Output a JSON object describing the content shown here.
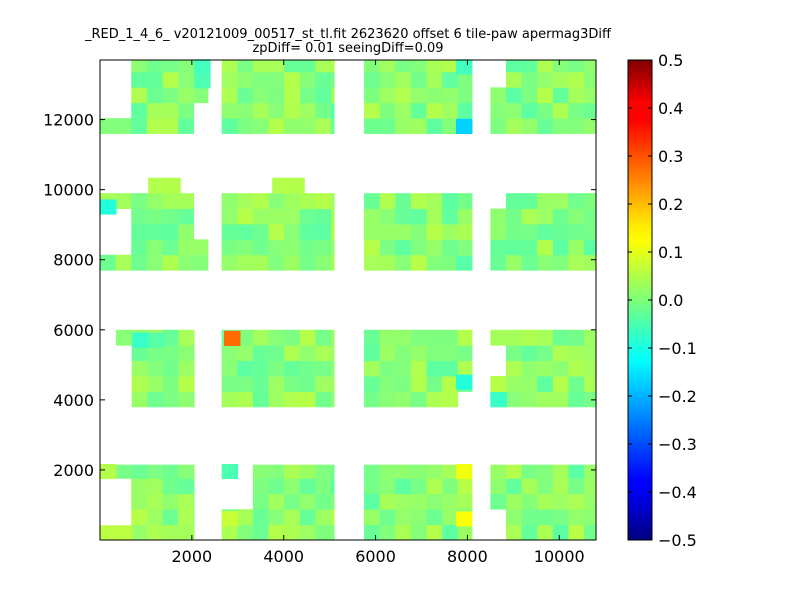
{
  "chart_data": {
    "type": "heatmap",
    "title_line1": "_RED_1_4_6_ v20121009_00517_st_tl.fit 2623620 offset 6 tile-paw apermag3Diff",
    "title_line2": "zpDiff= 0.01 seeingDiff=0.09",
    "xlabel": "",
    "ylabel": "",
    "xlim": [
      0,
      10800
    ],
    "ylim": [
      0,
      13700
    ],
    "xticks": [
      2000,
      4000,
      6000,
      8000,
      10000
    ],
    "xtick_labels": [
      "2000",
      "4000",
      "6000",
      "8000",
      "10000"
    ],
    "yticks": [
      2000,
      4000,
      6000,
      8000,
      10000,
      12000
    ],
    "ytick_labels": [
      "2000",
      "4000",
      "6000",
      "8000",
      "10000",
      "12000"
    ],
    "colorbar": {
      "colormap": "jet",
      "vmin": -0.5,
      "vmax": 0.5,
      "ticks": [
        0.5,
        0.4,
        0.3,
        0.2,
        0.1,
        0.0,
        -0.1,
        -0.2,
        -0.3,
        -0.4,
        -0.5
      ],
      "tick_labels": [
        "0.5",
        "0.4",
        "0.3",
        "0.2",
        "0.1",
        "0.0",
        "−0.1",
        "−0.2",
        "−0.3",
        "−0.4",
        "−0.5"
      ]
    },
    "cell_size": [
      340,
      440
    ],
    "base_value": 0.01,
    "chips": [
      {
        "x0": 0,
        "x1": 2050,
        "y0": 0,
        "y1": 2150,
        "missing": [
          [
            0,
            0,
            700,
            1750
          ],
          [
            2050,
            0,
            2050,
            0
          ]
        ]
      },
      {
        "x0": 2650,
        "x1": 5100,
        "y0": 0,
        "y1": 2150,
        "missing": [
          [
            2650,
            1050,
            3400,
            2150
          ]
        ]
      },
      {
        "x0": 5750,
        "x1": 8100,
        "y0": 0,
        "y1": 2150,
        "missing": []
      },
      {
        "x0": 8500,
        "x1": 10800,
        "y0": 0,
        "y1": 2150,
        "missing": [
          [
            8500,
            0,
            8850,
            1050
          ]
        ]
      },
      {
        "x0": 350,
        "x1": 2050,
        "y0": 3800,
        "y1": 6000,
        "missing": [
          [
            350,
            4000,
            700,
            5500
          ]
        ]
      },
      {
        "x0": 2650,
        "x1": 5100,
        "y0": 3800,
        "y1": 6000,
        "missing": []
      },
      {
        "x0": 5750,
        "x1": 8100,
        "y0": 3800,
        "y1": 6000,
        "missing": [
          [
            7700,
            3800,
            8100,
            4300
          ]
        ]
      },
      {
        "x0": 8500,
        "x1": 10800,
        "y0": 3800,
        "y1": 6000,
        "missing": [
          [
            8500,
            4800,
            8850,
            5700
          ]
        ]
      },
      {
        "x0": 0,
        "x1": 2350,
        "y0": 7700,
        "y1": 9900,
        "missing": [
          [
            0,
            8000,
            700,
            9300
          ],
          [
            2050,
            8600,
            2350,
            9900
          ]
        ]
      },
      {
        "x0": 2650,
        "x1": 5100,
        "y0": 7700,
        "y1": 9900,
        "missing": []
      },
      {
        "x0": 5750,
        "x1": 8100,
        "y0": 7700,
        "y1": 9900,
        "missing": []
      },
      {
        "x0": 8500,
        "x1": 10800,
        "y0": 7700,
        "y1": 9900,
        "missing": [
          [
            8500,
            9300,
            8850,
            9900
          ]
        ]
      },
      {
        "x0": 0,
        "x1": 2350,
        "y0": 11600,
        "y1": 13700,
        "missing": [
          [
            0,
            12000,
            700,
            13700
          ],
          [
            2050,
            11600,
            2350,
            12600
          ]
        ]
      },
      {
        "x0": 2650,
        "x1": 5100,
        "y0": 11600,
        "y1": 13700,
        "missing": []
      },
      {
        "x0": 5750,
        "x1": 8100,
        "y0": 11600,
        "y1": 13700,
        "missing": []
      },
      {
        "x0": 8500,
        "x1": 10800,
        "y0": 11600,
        "y1": 13700,
        "missing": [
          [
            8500,
            13000,
            8850,
            13700
          ]
        ]
      }
    ],
    "extra_cells": [
      {
        "x": 1050,
        "y": 9900,
        "w": 700,
        "h": 440,
        "v": 0.05
      },
      {
        "x": 3750,
        "y": 9900,
        "w": 700,
        "h": 440,
        "v": 0.05
      }
    ],
    "highlights": [
      {
        "x": 2700,
        "y": 5550,
        "v": 0.27
      },
      {
        "x": 7750,
        "y": 11600,
        "v": -0.17
      },
      {
        "x": 7750,
        "y": 1750,
        "v": 0.11
      },
      {
        "x": 7750,
        "y": 400,
        "v": 0.12
      },
      {
        "x": 7750,
        "y": 4300,
        "v": -0.09
      },
      {
        "x": 8500,
        "y": 3800,
        "v": -0.07
      },
      {
        "x": 0,
        "y": 9300,
        "v": -0.09
      },
      {
        "x": 2050,
        "y": 13300,
        "v": -0.06
      },
      {
        "x": 2050,
        "y": 12900,
        "v": -0.05
      },
      {
        "x": 7750,
        "y": 13300,
        "v": -0.06
      },
      {
        "x": 700,
        "y": 5500,
        "v": -0.07
      },
      {
        "x": 7750,
        "y": 7700,
        "v": -0.04
      },
      {
        "x": 2650,
        "y": 1750,
        "v": -0.05
      },
      {
        "x": 1050,
        "y": 5500,
        "v": -0.04
      },
      {
        "x": 2650,
        "y": 400,
        "v": 0.07
      },
      {
        "x": 0,
        "y": 0,
        "v": 0.06
      },
      {
        "x": 350,
        "y": 0,
        "v": 0.06
      },
      {
        "x": 0,
        "y": 1750,
        "v": 0.05
      }
    ]
  }
}
